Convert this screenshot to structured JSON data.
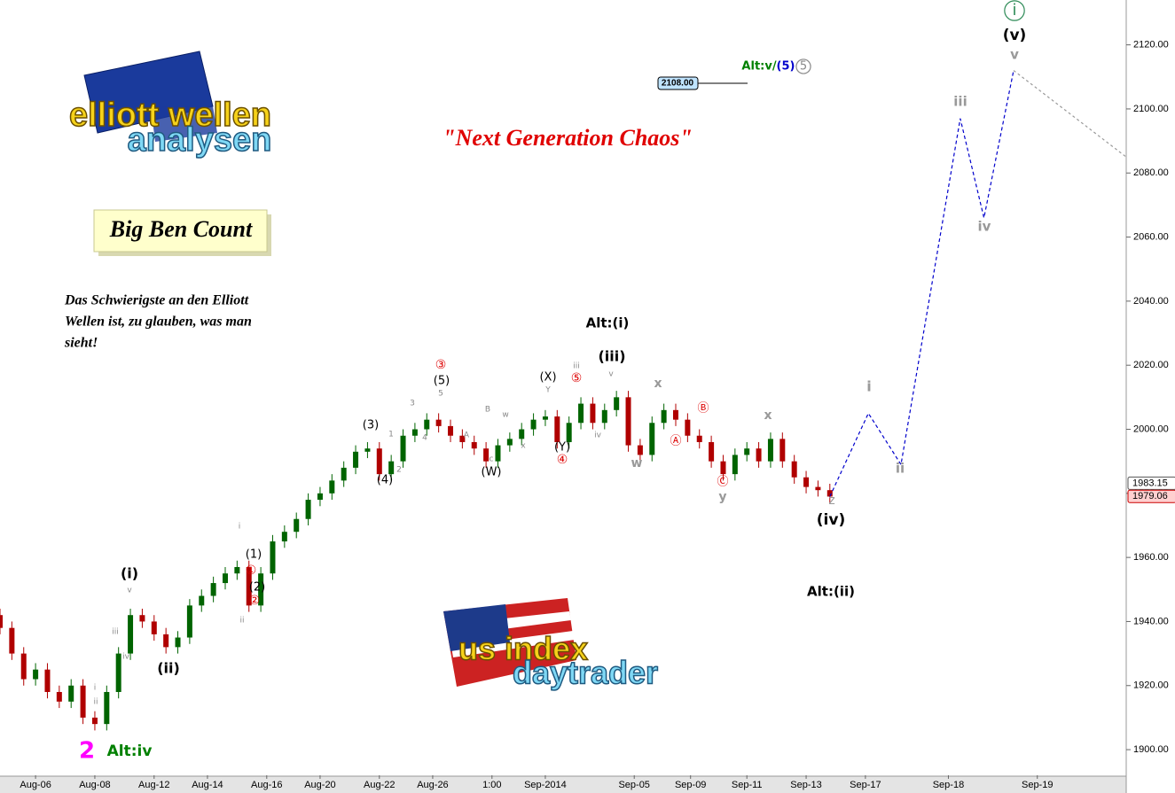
{
  "chart_data": {
    "type": "candlestick",
    "title": "\"Next Generation Chaos\"",
    "subtitle": "Big Ben Count",
    "note_lines": [
      "Das Schwierigste an den Elliott",
      "Wellen ist, zu glauben, was man",
      "sieht!"
    ],
    "logos": [
      {
        "line1": "elliott wellen",
        "line2": "analysen"
      },
      {
        "line1": "us index",
        "line2": "daytrader"
      }
    ],
    "x": [
      0,
      2,
      4,
      6,
      8,
      10,
      12,
      14,
      16,
      18,
      20,
      22,
      24,
      26,
      28,
      30,
      32,
      34,
      36,
      38,
      40,
      42,
      44,
      46,
      48,
      50,
      52,
      54,
      56,
      58,
      60,
      62,
      64,
      66,
      68,
      70,
      72,
      74,
      76,
      78,
      80,
      82,
      84,
      86,
      88,
      90,
      92,
      94,
      96,
      98,
      100,
      102,
      104,
      106,
      108,
      110,
      112,
      114,
      116,
      118,
      120,
      122,
      124,
      126,
      128,
      130,
      132,
      134,
      136,
      138,
      140
    ],
    "open": [
      1942,
      1938,
      1930,
      1922,
      1925,
      1918,
      1915,
      1920,
      1910,
      1908,
      1918,
      1930,
      1942,
      1940,
      1936,
      1932,
      1935,
      1945,
      1948,
      1952,
      1955,
      1957,
      1945,
      1955,
      1965,
      1968,
      1972,
      1978,
      1980,
      1984,
      1988,
      1993,
      1994,
      1986,
      1990,
      1998,
      2000,
      2003,
      2001,
      1998,
      1996,
      1994,
      1990,
      1995,
      1997,
      2000,
      2003,
      2004,
      1996,
      2002,
      2008,
      2002,
      2006,
      2010,
      1995,
      1992,
      2002,
      2006,
      2003,
      1998,
      1996,
      1990,
      1986,
      1992,
      1994,
      1990,
      1997,
      1990,
      1985,
      1982,
      1981
    ],
    "high": [
      1944,
      1940,
      1932,
      1927,
      1927,
      1920,
      1922,
      1922,
      1912,
      1920,
      1932,
      1944,
      1944,
      1942,
      1938,
      1937,
      1947,
      1950,
      1954,
      1957,
      1959,
      1959,
      1957,
      1967,
      1970,
      1974,
      1980,
      1982,
      1986,
      1990,
      1995,
      1996,
      1996,
      1992,
      2000,
      2002,
      2005,
      2005,
      2003,
      2000,
      1998,
      1996,
      1997,
      1999,
      2002,
      2005,
      2006,
      2006,
      2004,
      2010,
      2010,
      2008,
      2012,
      2012,
      1997,
      2004,
      2008,
      2008,
      2005,
      2000,
      1998,
      1992,
      1994,
      1996,
      1996,
      1999,
      1999,
      1992,
      1987,
      1984,
      1983
    ],
    "low": [
      1936,
      1928,
      1920,
      1920,
      1916,
      1913,
      1913,
      1908,
      1906,
      1906,
      1916,
      1928,
      1938,
      1934,
      1930,
      1930,
      1933,
      1943,
      1946,
      1950,
      1953,
      1943,
      1943,
      1953,
      1963,
      1966,
      1970,
      1976,
      1978,
      1982,
      1986,
      1991,
      1984,
      1984,
      1988,
      1996,
      1998,
      1999,
      1996,
      1994,
      1992,
      1988,
      1988,
      1993,
      1995,
      1998,
      2001,
      1994,
      1994,
      2000,
      2000,
      2000,
      2004,
      1993,
      1990,
      1990,
      2000,
      2001,
      1996,
      1994,
      1988,
      1984,
      1984,
      1990,
      1988,
      1988,
      1988,
      1983,
      1980,
      1979,
      1977
    ],
    "close": [
      1938,
      1930,
      1922,
      1925,
      1918,
      1915,
      1920,
      1910,
      1908,
      1918,
      1930,
      1942,
      1940,
      1936,
      1932,
      1935,
      1945,
      1948,
      1952,
      1955,
      1957,
      1945,
      1955,
      1965,
      1968,
      1972,
      1978,
      1980,
      1984,
      1988,
      1993,
      1994,
      1986,
      1990,
      1998,
      2000,
      2003,
      2001,
      1998,
      1996,
      1994,
      1990,
      1995,
      1997,
      2000,
      2003,
      2004,
      1996,
      2002,
      2008,
      2002,
      2006,
      2010,
      1995,
      1992,
      2002,
      2006,
      2003,
      1998,
      1996,
      1990,
      1986,
      1992,
      1994,
      1990,
      1997,
      1990,
      1985,
      1982,
      1981,
      1979
    ],
    "colors": {
      "up": "#006400",
      "down": "#b00000"
    },
    "xlim": [
      0,
      190
    ],
    "xticks": [
      {
        "value": 6,
        "label": "Aug-06"
      },
      {
        "value": 16,
        "label": "Aug-08"
      },
      {
        "value": 26,
        "label": "Aug-12"
      },
      {
        "value": 35,
        "label": "Aug-14"
      },
      {
        "value": 45,
        "label": "Aug-16"
      },
      {
        "value": 54,
        "label": "Aug-20"
      },
      {
        "value": 64,
        "label": "Aug-22"
      },
      {
        "value": 73,
        "label": "Aug-26"
      },
      {
        "value": 83,
        "label": "1:00"
      },
      {
        "value": 92,
        "label": "Sep-2014"
      },
      {
        "value": 107,
        "label": "Sep-05"
      },
      {
        "value": 116.5,
        "label": "Sep-09"
      },
      {
        "value": 126,
        "label": "Sep-11"
      },
      {
        "value": 136,
        "label": "Sep-13"
      },
      {
        "value": 146,
        "label": "Sep-17"
      },
      {
        "value": 160,
        "label": "Sep-18"
      },
      {
        "value": 175,
        "label": "Sep-19"
      }
    ],
    "ylim": [
      1892,
      2134
    ],
    "yticks": [
      {
        "value": 1900,
        "label": "1900.00"
      },
      {
        "value": 1920,
        "label": "1920.00"
      },
      {
        "value": 1940,
        "label": "1940.00"
      },
      {
        "value": 1960,
        "label": "1960.00"
      },
      {
        "value": 1980,
        "label": "1980.00"
      },
      {
        "value": 2000,
        "label": "2000.00"
      },
      {
        "value": 2020,
        "label": "2020.00"
      },
      {
        "value": 2040,
        "label": "2040.00"
      },
      {
        "value": 2060,
        "label": "2060.00"
      },
      {
        "value": 2080,
        "label": "2080.00"
      },
      {
        "value": 2100,
        "label": "2100.00"
      },
      {
        "value": 2120,
        "label": "2120.00"
      }
    ],
    "grid": false,
    "projection": {
      "color": "#0000cc",
      "x": [
        140,
        146.5,
        152,
        162,
        166,
        171
      ],
      "values": [
        1979,
        2005,
        1989,
        2097,
        2066,
        2112
      ]
    },
    "continuation": {
      "color": "#999999",
      "x": [
        171,
        190
      ],
      "values": [
        2112,
        2085
      ]
    },
    "price_tags": [
      {
        "value": 1983.15,
        "color": "#ffffff",
        "border": "#555555"
      },
      {
        "value": 1979.06,
        "color": "#ffd0d0",
        "border": "#cc0000"
      }
    ],
    "target_tag": {
      "value": 2108,
      "label": "2108.00",
      "color": "#bfe4ff"
    },
    "annotations": [
      {
        "text": "(v)",
        "color": "#000000"
      },
      {
        "text": "v",
        "color": "#999999"
      },
      {
        "text": "iii",
        "color": "#999999"
      },
      {
        "text": "iv",
        "color": "#999999"
      },
      {
        "text": "i",
        "color": "#999999"
      },
      {
        "text": "ii",
        "color": "#999999"
      },
      {
        "text": "z",
        "color": "#999999"
      },
      {
        "text": "(iv)",
        "color": "#000000"
      },
      {
        "text": "Alt:(ii)",
        "color": "#000000"
      },
      {
        "text": "x",
        "color": "#999999"
      },
      {
        "text": "w",
        "color": "#999999"
      },
      {
        "text": "x",
        "color": "#999999"
      },
      {
        "text": "y",
        "color": "#999999"
      },
      {
        "text": "Alt:(i)",
        "color": "#000000"
      },
      {
        "text": "(iii)",
        "color": "#000000"
      },
      {
        "text": "(i)",
        "color": "#000000"
      },
      {
        "text": "(ii)",
        "color": "#000000"
      },
      {
        "text": "2",
        "color": "#ff00ff"
      },
      {
        "text": "Alt:iv",
        "color": "#008000"
      },
      {
        "text": "(5)",
        "color": "#000000"
      },
      {
        "text": "(3)",
        "color": "#000000"
      },
      {
        "text": "(4)",
        "color": "#000000"
      },
      {
        "text": "(W)",
        "color": "#000000"
      },
      {
        "text": "(X)",
        "color": "#000000"
      },
      {
        "text": "(Y)",
        "color": "#000000"
      },
      {
        "text": "(1)",
        "color": "#000000"
      },
      {
        "text": "(2)",
        "color": "#000000"
      },
      {
        "text": "③",
        "color": "#dd0000"
      },
      {
        "text": "⑤",
        "color": "#dd0000"
      },
      {
        "text": "④",
        "color": "#dd0000"
      },
      {
        "text": "①",
        "color": "#dd0000"
      },
      {
        "text": "②",
        "color": "#dd0000"
      },
      {
        "text": "Ⓐ",
        "color": "#dd0000"
      },
      {
        "text": "Ⓑ",
        "color": "#dd0000"
      },
      {
        "text": "Ⓒ",
        "color": "#dd0000"
      },
      {
        "text": "5",
        "color": "#888888"
      },
      {
        "text": "3",
        "color": "#888888"
      },
      {
        "text": "4",
        "color": "#888888"
      },
      {
        "text": "1",
        "color": "#888888"
      },
      {
        "text": "2",
        "color": "#888888"
      },
      {
        "text": "A",
        "color": "#888888"
      },
      {
        "text": "B",
        "color": "#888888"
      },
      {
        "text": "c",
        "color": "#888888"
      },
      {
        "text": "w",
        "color": "#888888"
      },
      {
        "text": "x",
        "color": "#888888"
      },
      {
        "text": "Y",
        "color": "#888888"
      },
      {
        "text": "iii",
        "color": "#888888"
      },
      {
        "text": "v",
        "color": "#888888"
      },
      {
        "text": "iv",
        "color": "#888888"
      },
      {
        "text": "i",
        "color": "#888888"
      },
      {
        "text": "ii",
        "color": "#888888"
      },
      {
        "text": "v",
        "color": "#888888"
      },
      {
        "text": "iii",
        "color": "#888888"
      },
      {
        "text": "iv",
        "color": "#888888"
      },
      {
        "text": "i",
        "color": "#888888"
      },
      {
        "text": "ii",
        "color": "#888888"
      },
      {
        "text": "Alt:v/",
        "color": "#008000"
      },
      {
        "text": "(5)",
        "color": "#0000cc"
      },
      {
        "text": "5",
        "color": "#888888"
      },
      {
        "text": "i",
        "color": "#2e8b57"
      }
    ]
  }
}
